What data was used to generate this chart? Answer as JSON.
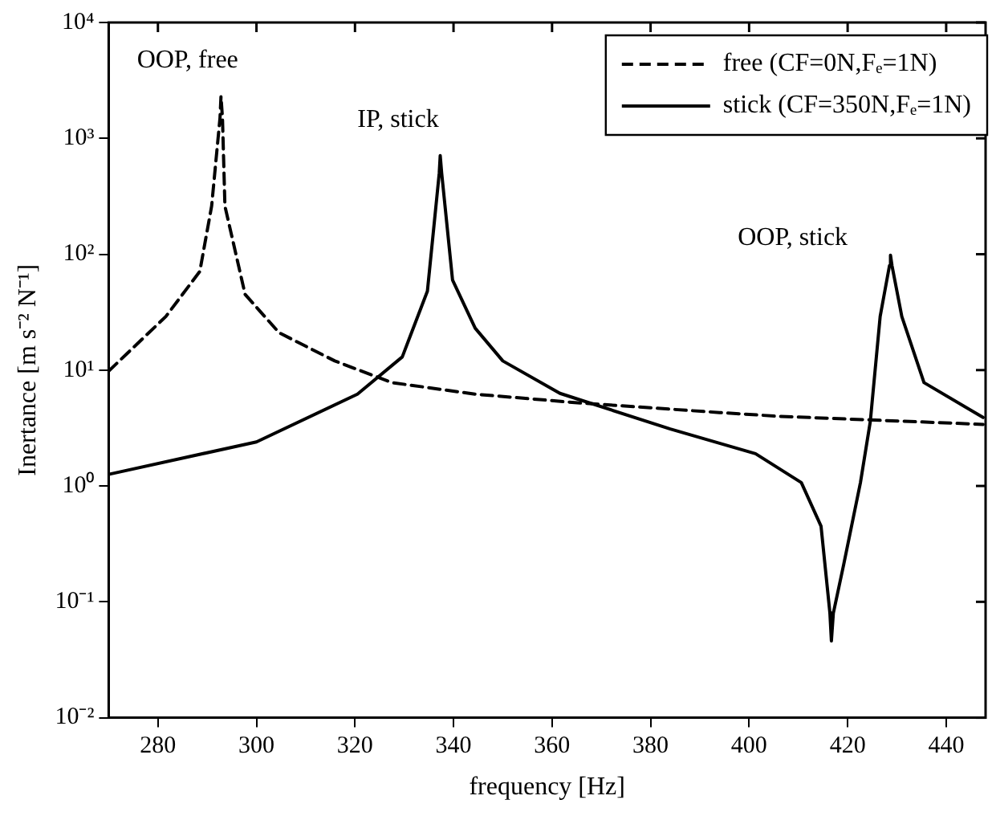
{
  "chart_data": {
    "type": "line",
    "xlabel": "frequency [Hz]",
    "ylabel": "Inertance [m s⁻² N⁻¹]",
    "log": "y",
    "xlim": [
      270,
      448
    ],
    "xticks": [
      280,
      300,
      320,
      340,
      360,
      380,
      400,
      420,
      440
    ],
    "ylim": [
      0.01,
      10000
    ],
    "yticks": [
      {
        "value": 0.01,
        "label": "10⁻²"
      },
      {
        "value": 0.1,
        "label": "10⁻¹"
      },
      {
        "value": 1,
        "label": "10⁰"
      },
      {
        "value": 10,
        "label": "10¹"
      },
      {
        "value": 100,
        "label": "10²"
      },
      {
        "value": 1000,
        "label": "10³"
      },
      {
        "value": 10000,
        "label": "10⁴"
      }
    ],
    "grid": false,
    "legend": "top right",
    "marker": "none",
    "series": [
      {
        "name": "free (CF=0N,Fₑ=1N)",
        "color": "#000000",
        "line_style": "dashed",
        "x": [
          270,
          281.6,
          288.5,
          290.9,
          292.6,
          292.8,
          293.1,
          293.6,
          297.7,
          304.6,
          315.9,
          327.5,
          344.4,
          365.7,
          394,
          405.6,
          447.5
        ],
        "values": [
          9.8,
          29,
          71,
          260,
          1500,
          2300,
          1500,
          260,
          45,
          21,
          12,
          7.8,
          6.2,
          5.2,
          4.3,
          4.0,
          3.4
        ]
      },
      {
        "name": "stick (CF=350N,Fₑ=1N)",
        "color": "#000000",
        "line_style": "solid",
        "x": [
          270,
          300,
          320.5,
          329.6,
          334.7,
          337.1,
          337.3,
          337.6,
          339.8,
          344.4,
          350,
          361.6,
          384,
          401.3,
          410.6,
          414.6,
          416.4,
          416.7,
          417.1,
          419.2,
          422.6,
          424.6,
          426.6,
          428.5,
          428.7,
          429,
          431,
          435.5,
          447.5
        ],
        "values": [
          1.26,
          2.4,
          6.2,
          13,
          48,
          500,
          710,
          500,
          60,
          23,
          12,
          6.3,
          3.1,
          1.9,
          1.07,
          0.45,
          0.08,
          0.046,
          0.08,
          0.21,
          1.07,
          3.6,
          29,
          80,
          98,
          80,
          29,
          7.8,
          3.9
        ]
      }
    ],
    "annotations": [
      "OOP, free",
      "IP, stick",
      "OOP, stick"
    ]
  }
}
